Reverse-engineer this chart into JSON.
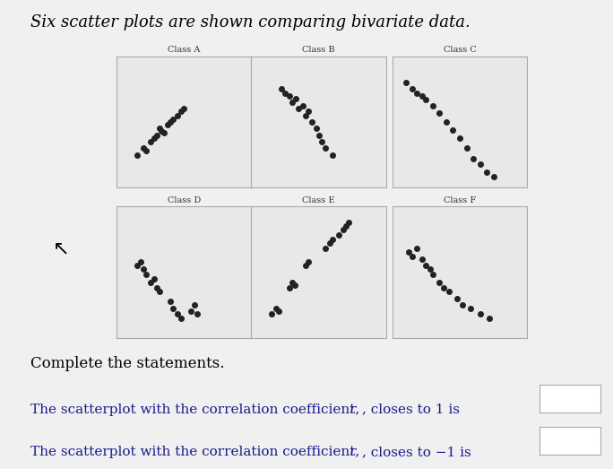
{
  "title": "Six scatter plots are shown comparing bivariate data.",
  "title_fontsize": 13,
  "background_color": "#f0f0f0",
  "plot_bg_color": "#e8e8e8",
  "panels": [
    {
      "label": "Class A",
      "points": [
        [
          0.25,
          0.35
        ],
        [
          0.28,
          0.38
        ],
        [
          0.32,
          0.45
        ],
        [
          0.35,
          0.42
        ],
        [
          0.38,
          0.48
        ],
        [
          0.4,
          0.5
        ],
        [
          0.42,
          0.52
        ],
        [
          0.3,
          0.4
        ],
        [
          0.33,
          0.43
        ],
        [
          0.2,
          0.3
        ],
        [
          0.22,
          0.28
        ],
        [
          0.45,
          0.55
        ],
        [
          0.48,
          0.58
        ],
        [
          0.15,
          0.25
        ],
        [
          0.5,
          0.6
        ]
      ],
      "color": "#222222"
    },
    {
      "label": "Class B",
      "points": [
        [
          0.3,
          0.65
        ],
        [
          0.35,
          0.6
        ],
        [
          0.38,
          0.62
        ],
        [
          0.4,
          0.55
        ],
        [
          0.42,
          0.58
        ],
        [
          0.45,
          0.5
        ],
        [
          0.48,
          0.45
        ],
        [
          0.33,
          0.68
        ],
        [
          0.5,
          0.4
        ],
        [
          0.52,
          0.35
        ],
        [
          0.28,
          0.7
        ],
        [
          0.55,
          0.3
        ],
        [
          0.25,
          0.72
        ],
        [
          0.6,
          0.25
        ],
        [
          0.22,
          0.75
        ]
      ],
      "color": "#222222"
    },
    {
      "label": "Class C",
      "points": [
        [
          0.1,
          0.8
        ],
        [
          0.15,
          0.75
        ],
        [
          0.18,
          0.72
        ],
        [
          0.22,
          0.7
        ],
        [
          0.25,
          0.67
        ],
        [
          0.3,
          0.62
        ],
        [
          0.35,
          0.57
        ],
        [
          0.4,
          0.5
        ],
        [
          0.45,
          0.44
        ],
        [
          0.5,
          0.38
        ],
        [
          0.55,
          0.3
        ],
        [
          0.6,
          0.22
        ],
        [
          0.65,
          0.18
        ],
        [
          0.7,
          0.12
        ],
        [
          0.75,
          0.08
        ]
      ],
      "color": "#222222"
    },
    {
      "label": "Class D",
      "points": [
        [
          0.15,
          0.55
        ],
        [
          0.18,
          0.58
        ],
        [
          0.2,
          0.52
        ],
        [
          0.22,
          0.48
        ],
        [
          0.25,
          0.42
        ],
        [
          0.28,
          0.45
        ],
        [
          0.3,
          0.38
        ],
        [
          0.32,
          0.35
        ],
        [
          0.4,
          0.28
        ],
        [
          0.42,
          0.22
        ],
        [
          0.45,
          0.18
        ],
        [
          0.48,
          0.15
        ],
        [
          0.55,
          0.2
        ],
        [
          0.58,
          0.25
        ],
        [
          0.6,
          0.18
        ]
      ],
      "color": "#222222"
    },
    {
      "label": "Class E",
      "points": [
        [
          0.15,
          0.18
        ],
        [
          0.18,
          0.22
        ],
        [
          0.2,
          0.2
        ],
        [
          0.28,
          0.38
        ],
        [
          0.3,
          0.42
        ],
        [
          0.32,
          0.4
        ],
        [
          0.4,
          0.55
        ],
        [
          0.42,
          0.58
        ],
        [
          0.55,
          0.68
        ],
        [
          0.58,
          0.72
        ],
        [
          0.6,
          0.75
        ],
        [
          0.65,
          0.78
        ],
        [
          0.68,
          0.82
        ],
        [
          0.7,
          0.85
        ],
        [
          0.72,
          0.88
        ]
      ],
      "color": "#222222"
    },
    {
      "label": "Class F",
      "points": [
        [
          0.12,
          0.65
        ],
        [
          0.15,
          0.62
        ],
        [
          0.18,
          0.68
        ],
        [
          0.22,
          0.6
        ],
        [
          0.25,
          0.55
        ],
        [
          0.28,
          0.52
        ],
        [
          0.3,
          0.48
        ],
        [
          0.35,
          0.42
        ],
        [
          0.38,
          0.38
        ],
        [
          0.42,
          0.35
        ],
        [
          0.48,
          0.3
        ],
        [
          0.52,
          0.25
        ],
        [
          0.58,
          0.22
        ],
        [
          0.65,
          0.18
        ],
        [
          0.72,
          0.15
        ]
      ],
      "color": "#222222"
    }
  ],
  "statement1": "The scatterplot with the correlation coefficient, r, closes to 1 is",
  "statement2": "The scatterplot with the correlation coefficient, r, closes to −1 is",
  "complete_text": "Complete the statements.",
  "text_color": "#1a1a8c",
  "marker_size": 4
}
